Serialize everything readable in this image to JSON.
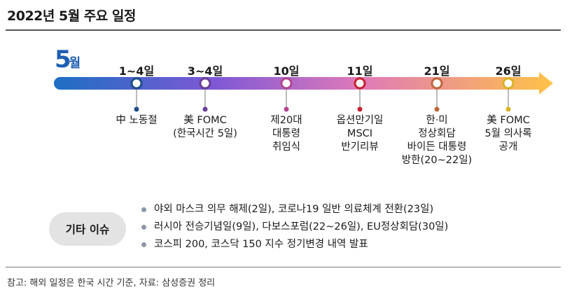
{
  "title": "2022년 5월 주요 일정",
  "month": {
    "number": "5",
    "suffix": "월"
  },
  "events": [
    {
      "date": "1~4일",
      "desc": "中 노동절",
      "color": "#1c4f86"
    },
    {
      "date": "3~4일",
      "desc": "美 FOMC\n(한국시간 5일)",
      "color": "#6b3d96"
    },
    {
      "date": "10일",
      "desc": "제20대\n대통령\n취임식",
      "color": "#b4458f"
    },
    {
      "date": "11일",
      "desc": "옵션만기일\nMSCI\n반기리뷰",
      "color": "#c8202e"
    },
    {
      "date": "21일",
      "desc": "한·미\n정상회담\n바이든 대통령\n방한(20~22일)",
      "color": "#c0663c"
    },
    {
      "date": "26일",
      "desc": "美 FOMC\n5월 의사록\n공개",
      "color": "#d8b322"
    }
  ],
  "other": {
    "label": "기타 이슈",
    "items": [
      "야외 마스크 의무 해제(2일), 코로나19 일반 의료체계 전환(23일)",
      "러시아 전승기념일(9일), 다보스포럼(22~26일), EU정상회담(30일)",
      "코스피 200, 코스닥 150 지수 정기변경 내역 발표"
    ]
  },
  "source": "참고: 해외 일정은 한국 시간 기준, 자료: 삼성증권 정리",
  "colors": {
    "arrow_start": "#1a6fc4",
    "arrow_mid1": "#7f58d6",
    "arrow_mid2": "#e07ab8",
    "arrow_end": "#ffc247"
  }
}
